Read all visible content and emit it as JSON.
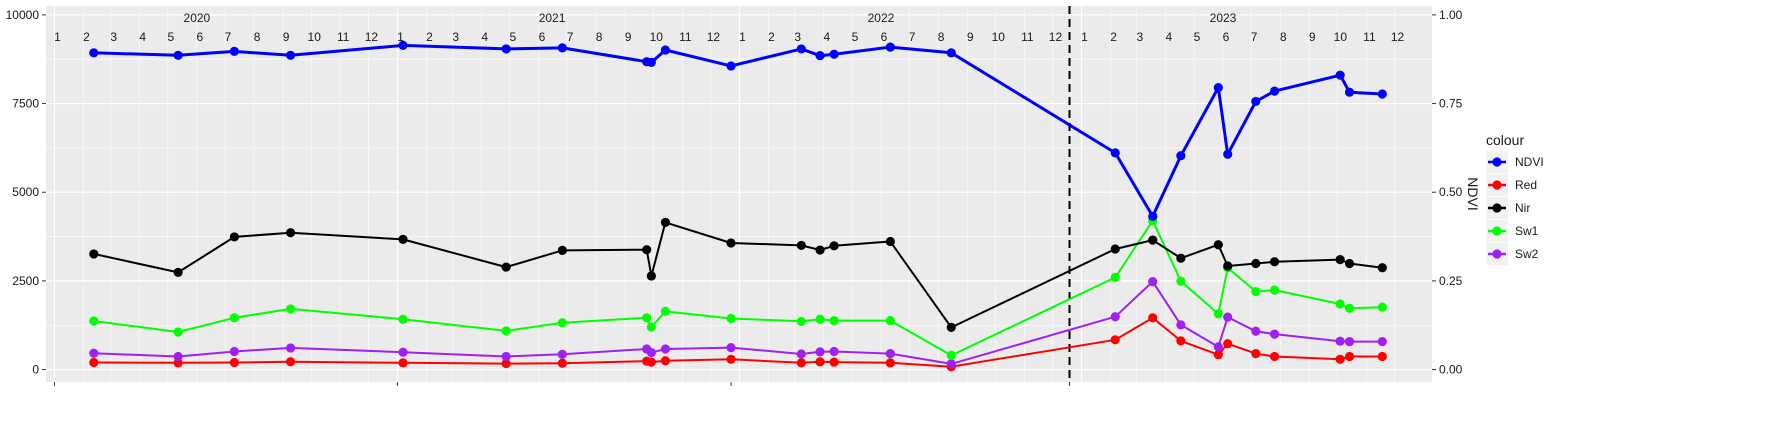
{
  "chart_data": {
    "type": "line",
    "y_left": {
      "ticks": [
        0,
        2500,
        5000,
        7500,
        10000
      ],
      "tick_labels": [
        "0",
        "2500",
        "5000",
        "7500",
        "10000"
      ],
      "range": [
        -350,
        10250
      ]
    },
    "y_right": {
      "label": "NDVI",
      "ticks": [
        0,
        0.25,
        0.5,
        0.75,
        1
      ],
      "tick_labels": [
        "0.00",
        "0.25",
        "0.50",
        "0.75",
        "1.00"
      ],
      "range": [
        -0.035,
        1.025
      ]
    },
    "x_range": [
      "2019-12-23",
      "2024-01-10"
    ],
    "year_labels": [
      {
        "label": "2020",
        "date": "2020-06-01"
      },
      {
        "label": "2021",
        "date": "2021-06-15"
      },
      {
        "label": "2022",
        "date": "2022-06-01"
      },
      {
        "label": "2023",
        "date": "2023-06-01"
      }
    ],
    "month_labels": [
      {
        "label": "1",
        "date": "2020-01-01"
      },
      {
        "label": "2",
        "date": "2020-02-01"
      },
      {
        "label": "3",
        "date": "2020-03-01"
      },
      {
        "label": "4",
        "date": "2020-04-01"
      },
      {
        "label": "5",
        "date": "2020-05-01"
      },
      {
        "label": "6",
        "date": "2020-06-01"
      },
      {
        "label": "7",
        "date": "2020-07-01"
      },
      {
        "label": "8",
        "date": "2020-08-01"
      },
      {
        "label": "9",
        "date": "2020-09-01"
      },
      {
        "label": "10",
        "date": "2020-10-01"
      },
      {
        "label": "11",
        "date": "2020-11-01"
      },
      {
        "label": "12",
        "date": "2020-12-01"
      },
      {
        "label": "1",
        "date": "2021-01-01"
      },
      {
        "label": "2",
        "date": "2021-02-01"
      },
      {
        "label": "3",
        "date": "2021-03-01"
      },
      {
        "label": "4",
        "date": "2021-04-01"
      },
      {
        "label": "5",
        "date": "2021-05-01"
      },
      {
        "label": "6",
        "date": "2021-06-01"
      },
      {
        "label": "7",
        "date": "2021-07-01"
      },
      {
        "label": "8",
        "date": "2021-08-01"
      },
      {
        "label": "9",
        "date": "2021-09-01"
      },
      {
        "label": "10",
        "date": "2021-10-01"
      },
      {
        "label": "11",
        "date": "2021-11-01"
      },
      {
        "label": "12",
        "date": "2021-12-01"
      },
      {
        "label": "1",
        "date": "2022-01-01"
      },
      {
        "label": "2",
        "date": "2022-02-01"
      },
      {
        "label": "3",
        "date": "2022-03-01"
      },
      {
        "label": "4",
        "date": "2022-04-01"
      },
      {
        "label": "5",
        "date": "2022-05-01"
      },
      {
        "label": "6",
        "date": "2022-06-01"
      },
      {
        "label": "7",
        "date": "2022-07-01"
      },
      {
        "label": "8",
        "date": "2022-08-01"
      },
      {
        "label": "9",
        "date": "2022-09-01"
      },
      {
        "label": "10",
        "date": "2022-10-01"
      },
      {
        "label": "11",
        "date": "2022-11-01"
      },
      {
        "label": "12",
        "date": "2022-12-01"
      },
      {
        "label": "1",
        "date": "2023-01-01"
      },
      {
        "label": "2",
        "date": "2023-02-01"
      },
      {
        "label": "3",
        "date": "2023-03-01"
      },
      {
        "label": "4",
        "date": "2023-04-01"
      },
      {
        "label": "5",
        "date": "2023-05-01"
      },
      {
        "label": "6",
        "date": "2023-06-01"
      },
      {
        "label": "7",
        "date": "2023-07-01"
      },
      {
        "label": "8",
        "date": "2023-08-01"
      },
      {
        "label": "9",
        "date": "2023-09-01"
      },
      {
        "label": "10",
        "date": "2023-10-01"
      },
      {
        "label": "11",
        "date": "2023-11-01"
      },
      {
        "label": "12",
        "date": "2023-12-01"
      }
    ],
    "vline": {
      "date": "2023-01-01",
      "style": "dashed"
    },
    "grid": true,
    "legend": {
      "title": "colour",
      "placement": "right",
      "entries": [
        {
          "label": "NDVI",
          "color": "#0000ff"
        },
        {
          "label": "Red",
          "color": "#ff0000"
        },
        {
          "label": "Nir",
          "color": "#000000"
        },
        {
          "label": "Sw1",
          "color": "#00ff00"
        },
        {
          "label": "Sw2",
          "color": "#a020f0"
        }
      ]
    },
    "series": [
      {
        "name": "NDVI",
        "color": "#0000ff",
        "axis": "right",
        "line_width": 3,
        "points": [
          [
            "2020-02-12",
            0.893
          ],
          [
            "2020-05-12",
            0.886
          ],
          [
            "2020-07-11",
            0.897
          ],
          [
            "2020-09-09",
            0.886
          ],
          [
            "2021-01-07",
            0.914
          ],
          [
            "2021-04-27",
            0.904
          ],
          [
            "2021-06-26",
            0.907
          ],
          [
            "2021-09-24",
            0.868
          ],
          [
            "2021-09-29",
            0.866
          ],
          [
            "2021-10-14",
            0.901
          ],
          [
            "2021-12-23",
            0.856
          ],
          [
            "2022-03-08",
            0.904
          ],
          [
            "2022-03-28",
            0.885
          ],
          [
            "2022-04-12",
            0.889
          ],
          [
            "2022-06-11",
            0.909
          ],
          [
            "2022-08-15",
            0.893
          ],
          [
            "2023-02-06",
            0.611
          ],
          [
            "2023-03-18",
            0.432
          ],
          [
            "2023-04-17",
            0.603
          ],
          [
            "2023-05-27",
            0.795
          ],
          [
            "2023-06-06",
            0.607
          ],
          [
            "2023-07-06",
            0.756
          ],
          [
            "2023-07-26",
            0.785
          ],
          [
            "2023-10-04",
            0.83
          ],
          [
            "2023-10-14",
            0.782
          ],
          [
            "2023-11-18",
            0.777
          ]
        ]
      },
      {
        "name": "Red",
        "color": "#ff0000",
        "axis": "left",
        "line_width": 2,
        "points": [
          [
            "2020-02-12",
            200
          ],
          [
            "2020-05-12",
            190
          ],
          [
            "2020-07-11",
            200
          ],
          [
            "2020-09-09",
            220
          ],
          [
            "2021-01-07",
            190
          ],
          [
            "2021-04-27",
            170
          ],
          [
            "2021-06-26",
            180
          ],
          [
            "2021-09-24",
            240
          ],
          [
            "2021-09-29",
            210
          ],
          [
            "2021-10-14",
            250
          ],
          [
            "2021-12-23",
            290
          ],
          [
            "2022-03-08",
            190
          ],
          [
            "2022-03-28",
            220
          ],
          [
            "2022-04-12",
            210
          ],
          [
            "2022-06-11",
            190
          ],
          [
            "2022-08-15",
            80
          ],
          [
            "2023-02-06",
            840
          ],
          [
            "2023-03-18",
            1460
          ],
          [
            "2023-04-17",
            810
          ],
          [
            "2023-05-27",
            420
          ],
          [
            "2023-06-06",
            730
          ],
          [
            "2023-07-06",
            450
          ],
          [
            "2023-07-26",
            370
          ],
          [
            "2023-10-04",
            290
          ],
          [
            "2023-10-14",
            370
          ],
          [
            "2023-11-18",
            370
          ]
        ]
      },
      {
        "name": "Nir",
        "color": "#000000",
        "axis": "left",
        "line_width": 2,
        "points": [
          [
            "2020-02-12",
            3260
          ],
          [
            "2020-05-12",
            2740
          ],
          [
            "2020-07-11",
            3740
          ],
          [
            "2020-09-09",
            3860
          ],
          [
            "2021-01-07",
            3670
          ],
          [
            "2021-04-27",
            2890
          ],
          [
            "2021-06-26",
            3360
          ],
          [
            "2021-09-24",
            3380
          ],
          [
            "2021-09-29",
            2640
          ],
          [
            "2021-10-14",
            4150
          ],
          [
            "2021-12-23",
            3570
          ],
          [
            "2022-03-08",
            3500
          ],
          [
            "2022-03-28",
            3370
          ],
          [
            "2022-04-12",
            3490
          ],
          [
            "2022-06-11",
            3610
          ],
          [
            "2022-08-15",
            1190
          ],
          [
            "2023-02-06",
            3400
          ],
          [
            "2023-03-18",
            3650
          ],
          [
            "2023-04-17",
            3140
          ],
          [
            "2023-05-27",
            3520
          ],
          [
            "2023-06-06",
            2920
          ],
          [
            "2023-07-06",
            2990
          ],
          [
            "2023-07-26",
            3040
          ],
          [
            "2023-10-04",
            3100
          ],
          [
            "2023-10-14",
            2990
          ],
          [
            "2023-11-18",
            2870
          ]
        ]
      },
      {
        "name": "Sw1",
        "color": "#00ff00",
        "axis": "left",
        "line_width": 2,
        "points": [
          [
            "2020-02-12",
            1370
          ],
          [
            "2020-05-12",
            1060
          ],
          [
            "2020-07-11",
            1460
          ],
          [
            "2020-09-09",
            1710
          ],
          [
            "2021-01-07",
            1420
          ],
          [
            "2021-04-27",
            1090
          ],
          [
            "2021-06-26",
            1320
          ],
          [
            "2021-09-24",
            1460
          ],
          [
            "2021-09-29",
            1200
          ],
          [
            "2021-10-14",
            1640
          ],
          [
            "2021-12-23",
            1440
          ],
          [
            "2022-03-08",
            1360
          ],
          [
            "2022-03-28",
            1420
          ],
          [
            "2022-04-12",
            1380
          ],
          [
            "2022-06-11",
            1380
          ],
          [
            "2022-08-15",
            400
          ],
          [
            "2023-02-06",
            2600
          ],
          [
            "2023-03-18",
            4200
          ],
          [
            "2023-04-17",
            2490
          ],
          [
            "2023-05-27",
            1570
          ],
          [
            "2023-06-06",
            2870
          ],
          [
            "2023-07-06",
            2200
          ],
          [
            "2023-07-26",
            2240
          ],
          [
            "2023-10-04",
            1850
          ],
          [
            "2023-10-14",
            1730
          ],
          [
            "2023-11-18",
            1760
          ]
        ]
      },
      {
        "name": "Sw2",
        "color": "#a020f0",
        "axis": "left",
        "line_width": 2,
        "points": [
          [
            "2020-02-12",
            460
          ],
          [
            "2020-05-12",
            370
          ],
          [
            "2020-07-11",
            510
          ],
          [
            "2020-09-09",
            610
          ],
          [
            "2021-01-07",
            490
          ],
          [
            "2021-04-27",
            370
          ],
          [
            "2021-06-26",
            430
          ],
          [
            "2021-09-24",
            580
          ],
          [
            "2021-09-29",
            480
          ],
          [
            "2021-10-14",
            580
          ],
          [
            "2021-12-23",
            620
          ],
          [
            "2022-03-08",
            440
          ],
          [
            "2022-03-28",
            500
          ],
          [
            "2022-04-12",
            510
          ],
          [
            "2022-06-11",
            450
          ],
          [
            "2022-08-15",
            160
          ],
          [
            "2023-02-06",
            1490
          ],
          [
            "2023-03-18",
            2480
          ],
          [
            "2023-04-17",
            1260
          ],
          [
            "2023-05-27",
            640
          ],
          [
            "2023-06-06",
            1480
          ],
          [
            "2023-07-06",
            1080
          ],
          [
            "2023-07-26",
            1000
          ],
          [
            "2023-10-04",
            800
          ],
          [
            "2023-10-14",
            790
          ],
          [
            "2023-11-18",
            790
          ]
        ]
      }
    ]
  }
}
